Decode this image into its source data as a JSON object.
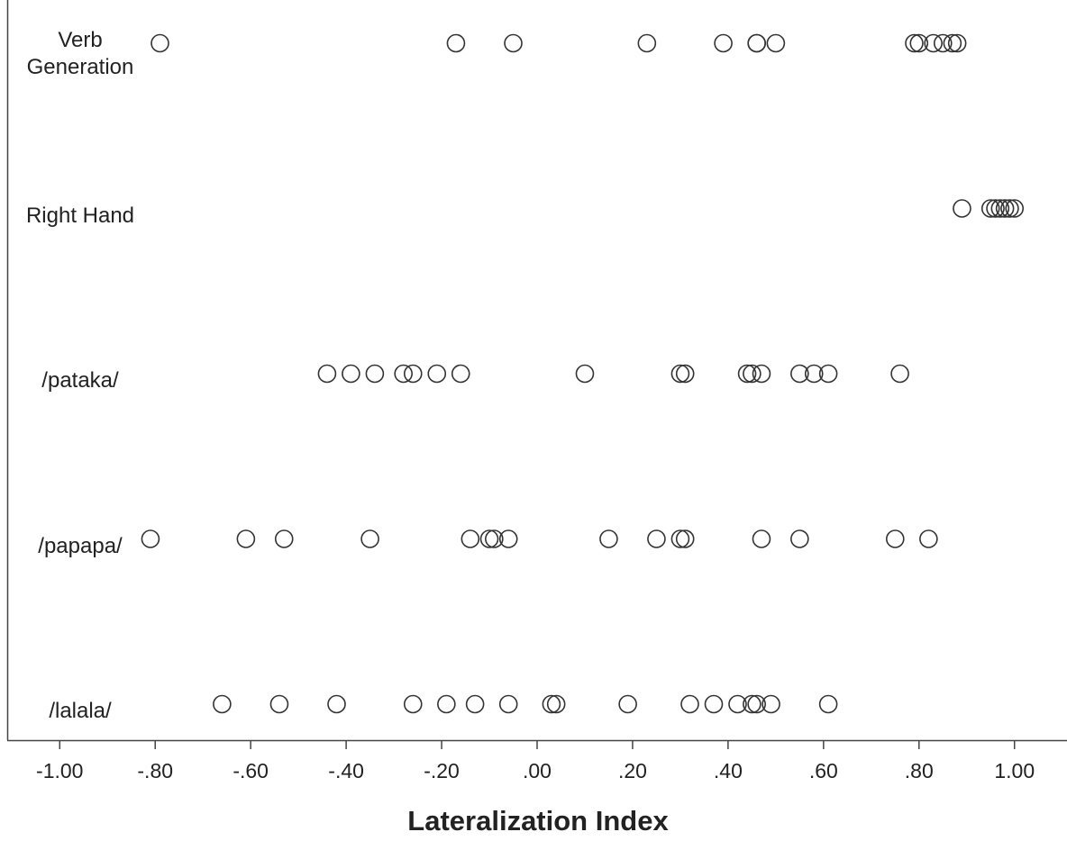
{
  "chart_data": {
    "type": "strip",
    "x_label": "Lateralization Index",
    "categories": [
      "Verb Generation",
      "Right Hand",
      "/pataka/",
      "/papapa/",
      "/lalala/"
    ],
    "values": [
      [
        -0.79,
        -0.17,
        -0.05,
        0.23,
        0.39,
        0.46,
        0.46,
        0.5,
        0.79,
        0.8,
        0.83,
        0.85,
        0.87,
        0.88
      ],
      [
        0.89,
        0.95,
        0.96,
        0.97,
        0.98,
        0.99,
        1.0
      ],
      [
        -0.44,
        -0.39,
        -0.34,
        -0.28,
        -0.26,
        -0.21,
        -0.16,
        0.1,
        0.3,
        0.31,
        0.44,
        0.45,
        0.47,
        0.55,
        0.58,
        0.61,
        0.76
      ],
      [
        -0.81,
        -0.61,
        -0.53,
        -0.35,
        -0.14,
        -0.1,
        -0.09,
        -0.06,
        0.15,
        0.25,
        0.3,
        0.31,
        0.47,
        0.55,
        0.75,
        0.82
      ],
      [
        -0.66,
        -0.54,
        -0.42,
        -0.26,
        -0.19,
        -0.13,
        -0.06,
        0.03,
        0.04,
        0.19,
        0.32,
        0.37,
        0.42,
        0.45,
        0.46,
        0.49,
        0.61
      ]
    ],
    "color": "#333333",
    "xlim": [
      -1.11,
      1.11
    ],
    "xticks": [
      {
        "value": -1,
        "label": "-1.00"
      },
      {
        "value": -0.8,
        "label": "-.80"
      },
      {
        "value": -0.6,
        "label": "-.60"
      },
      {
        "value": -0.4,
        "label": "-.40"
      },
      {
        "value": -0.2,
        "label": "-.20"
      },
      {
        "value": 0,
        "label": ".00"
      },
      {
        "value": 0.2,
        "label": ".20"
      },
      {
        "value": 0.4,
        "label": ".40"
      },
      {
        "value": 0.6,
        "label": ".60"
      },
      {
        "value": 0.8,
        "label": ".80"
      },
      {
        "value": 1,
        "label": "1.00"
      }
    ]
  }
}
